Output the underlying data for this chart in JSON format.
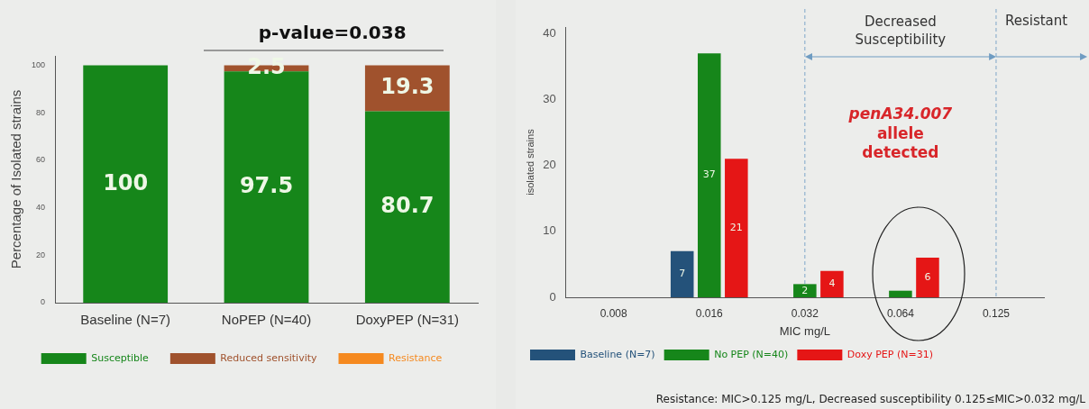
{
  "chart_data": [
    {
      "type": "bar",
      "stacked": true,
      "categories": [
        "Baseline (N=7)",
        "NoPEP (N=40)",
        "DoxyPEP (N=31)"
      ],
      "series": [
        {
          "name": "Susceptible",
          "color": "#16861a",
          "values": [
            100,
            97.5,
            80.7
          ],
          "value_labels": [
            "100",
            "97.5",
            "80.7"
          ]
        },
        {
          "name": "Reduced sensitivity",
          "color": "#a0522d",
          "values": [
            0,
            2.5,
            19.3
          ],
          "value_labels": [
            null,
            "2.5",
            "19.3"
          ]
        },
        {
          "name": "Resistance",
          "color": "#f5891f",
          "values": [
            0,
            0,
            0
          ]
        }
      ],
      "ylabel": "Percentage of Isolated strains",
      "ylim": [
        0,
        104
      ],
      "yticks": [
        0,
        20,
        40,
        60,
        80,
        100
      ],
      "grid": false,
      "legend": "bottom",
      "annotations": [
        "p-value=0.038"
      ]
    },
    {
      "type": "bar",
      "categories": [
        "0.008",
        "0.016",
        "0.032",
        "0.064",
        "0.125"
      ],
      "series": [
        {
          "name": "Baseline (N=7)",
          "color": "#24527a",
          "values": [
            null,
            7,
            null,
            null,
            null
          ],
          "value_labels": [
            null,
            "7",
            null,
            null,
            null
          ]
        },
        {
          "name": "No PEP (N=40)",
          "color": "#16861a",
          "values": [
            null,
            37,
            2,
            1,
            null
          ],
          "value_labels": [
            null,
            "37",
            "2",
            null,
            null
          ]
        },
        {
          "name": "Doxy PEP (N=31)",
          "color": "#e51616",
          "values": [
            null,
            21,
            4,
            6,
            null
          ],
          "value_labels": [
            null,
            "21",
            "4",
            "6",
            null
          ]
        }
      ],
      "xlabel": "MIC mg/L",
      "ylabel": "isolated strains",
      "ylim": [
        0,
        41
      ],
      "yticks": [
        0,
        10,
        20,
        30,
        40
      ],
      "grid": false,
      "legend": "bottom left",
      "ref_lines": [
        {
          "axis": "x",
          "value": "0.032",
          "color": "#7ea6c9",
          "line_style": "dashed"
        },
        {
          "axis": "x",
          "value": "0.125",
          "color": "#7ea6c9",
          "line_style": "dashed"
        }
      ],
      "annotations": [
        "Decreased Susceptibility",
        "Resistant",
        "penA34.007",
        "allele detected",
        "Resistance: MIC>0.125 mg/L, Decreased susceptibility 0.125≤MIC>0.032 mg/L"
      ]
    }
  ]
}
